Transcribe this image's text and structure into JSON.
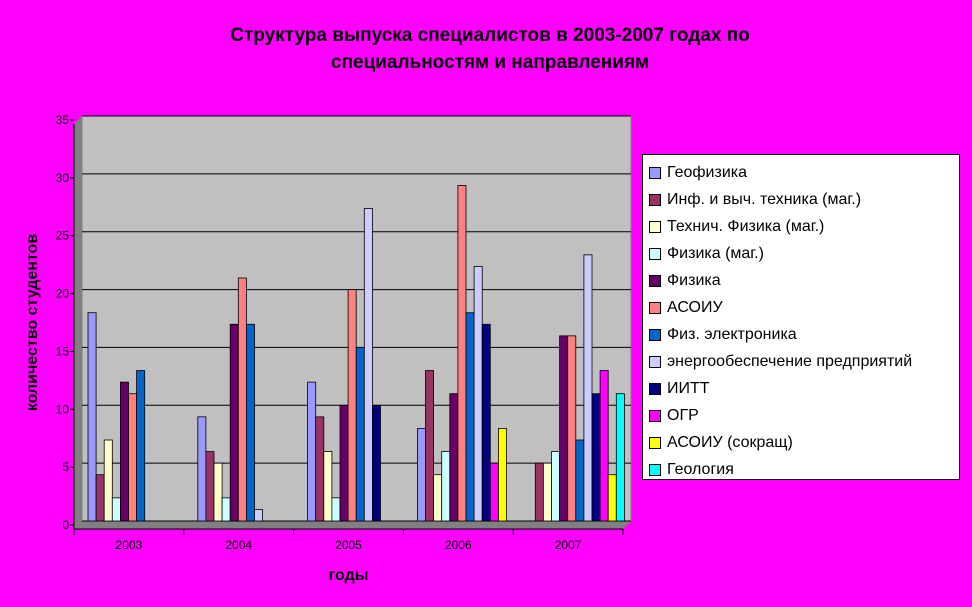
{
  "chart_data": {
    "type": "bar",
    "title_lines": [
      "Структура выпуска специалистов в 2003-2007 годах по",
      "специальностям и направлениям"
    ],
    "xlabel": "годы",
    "ylabel": "количество студентов",
    "categories": [
      "2003",
      "2004",
      "2005",
      "2006",
      "2007"
    ],
    "ylim": [
      0,
      35
    ],
    "yticks": [
      0,
      5,
      10,
      15,
      20,
      25,
      30,
      35
    ],
    "grid": true,
    "plot_background": "#C0C0C0",
    "legend_position": "right",
    "series": [
      {
        "name": "Геофизика",
        "color": "#9999FF",
        "values": [
          18,
          9,
          12,
          8,
          0
        ]
      },
      {
        "name": "Инф. и выч. техника (маг.)",
        "color": "#993366",
        "values": [
          4,
          6,
          9,
          13,
          5
        ]
      },
      {
        "name": "Технич. Физика (маг.)",
        "color": "#FFFFCC",
        "values": [
          7,
          5,
          6,
          4,
          5
        ]
      },
      {
        "name": "Физика (маг.)",
        "color": "#CCFFFF",
        "values": [
          2,
          2,
          2,
          6,
          6
        ]
      },
      {
        "name": "Физика",
        "color": "#660066",
        "values": [
          12,
          17,
          10,
          11,
          16
        ]
      },
      {
        "name": "АСОИУ",
        "color": "#FF8080",
        "values": [
          11,
          21,
          20,
          29,
          16
        ]
      },
      {
        "name": "Физ. электроника",
        "color": "#0066CC",
        "values": [
          13,
          17,
          15,
          18,
          7
        ]
      },
      {
        "name": "энергообеспечение предприятий",
        "color": "#CCCCFF",
        "values": [
          0,
          1,
          27,
          22,
          23
        ]
      },
      {
        "name": "ИИТТ",
        "color": "#000080",
        "values": [
          0,
          0,
          10,
          17,
          11
        ]
      },
      {
        "name": "ОГР",
        "color": "#FF00FF",
        "values": [
          0,
          0,
          0,
          5,
          13
        ]
      },
      {
        "name": "АСОИУ (сокращ)",
        "color": "#FFFF00",
        "values": [
          0,
          0,
          0,
          8,
          4
        ]
      },
      {
        "name": "Геология",
        "color": "#00FFFF",
        "values": [
          0,
          0,
          0,
          0,
          11
        ]
      }
    ]
  }
}
